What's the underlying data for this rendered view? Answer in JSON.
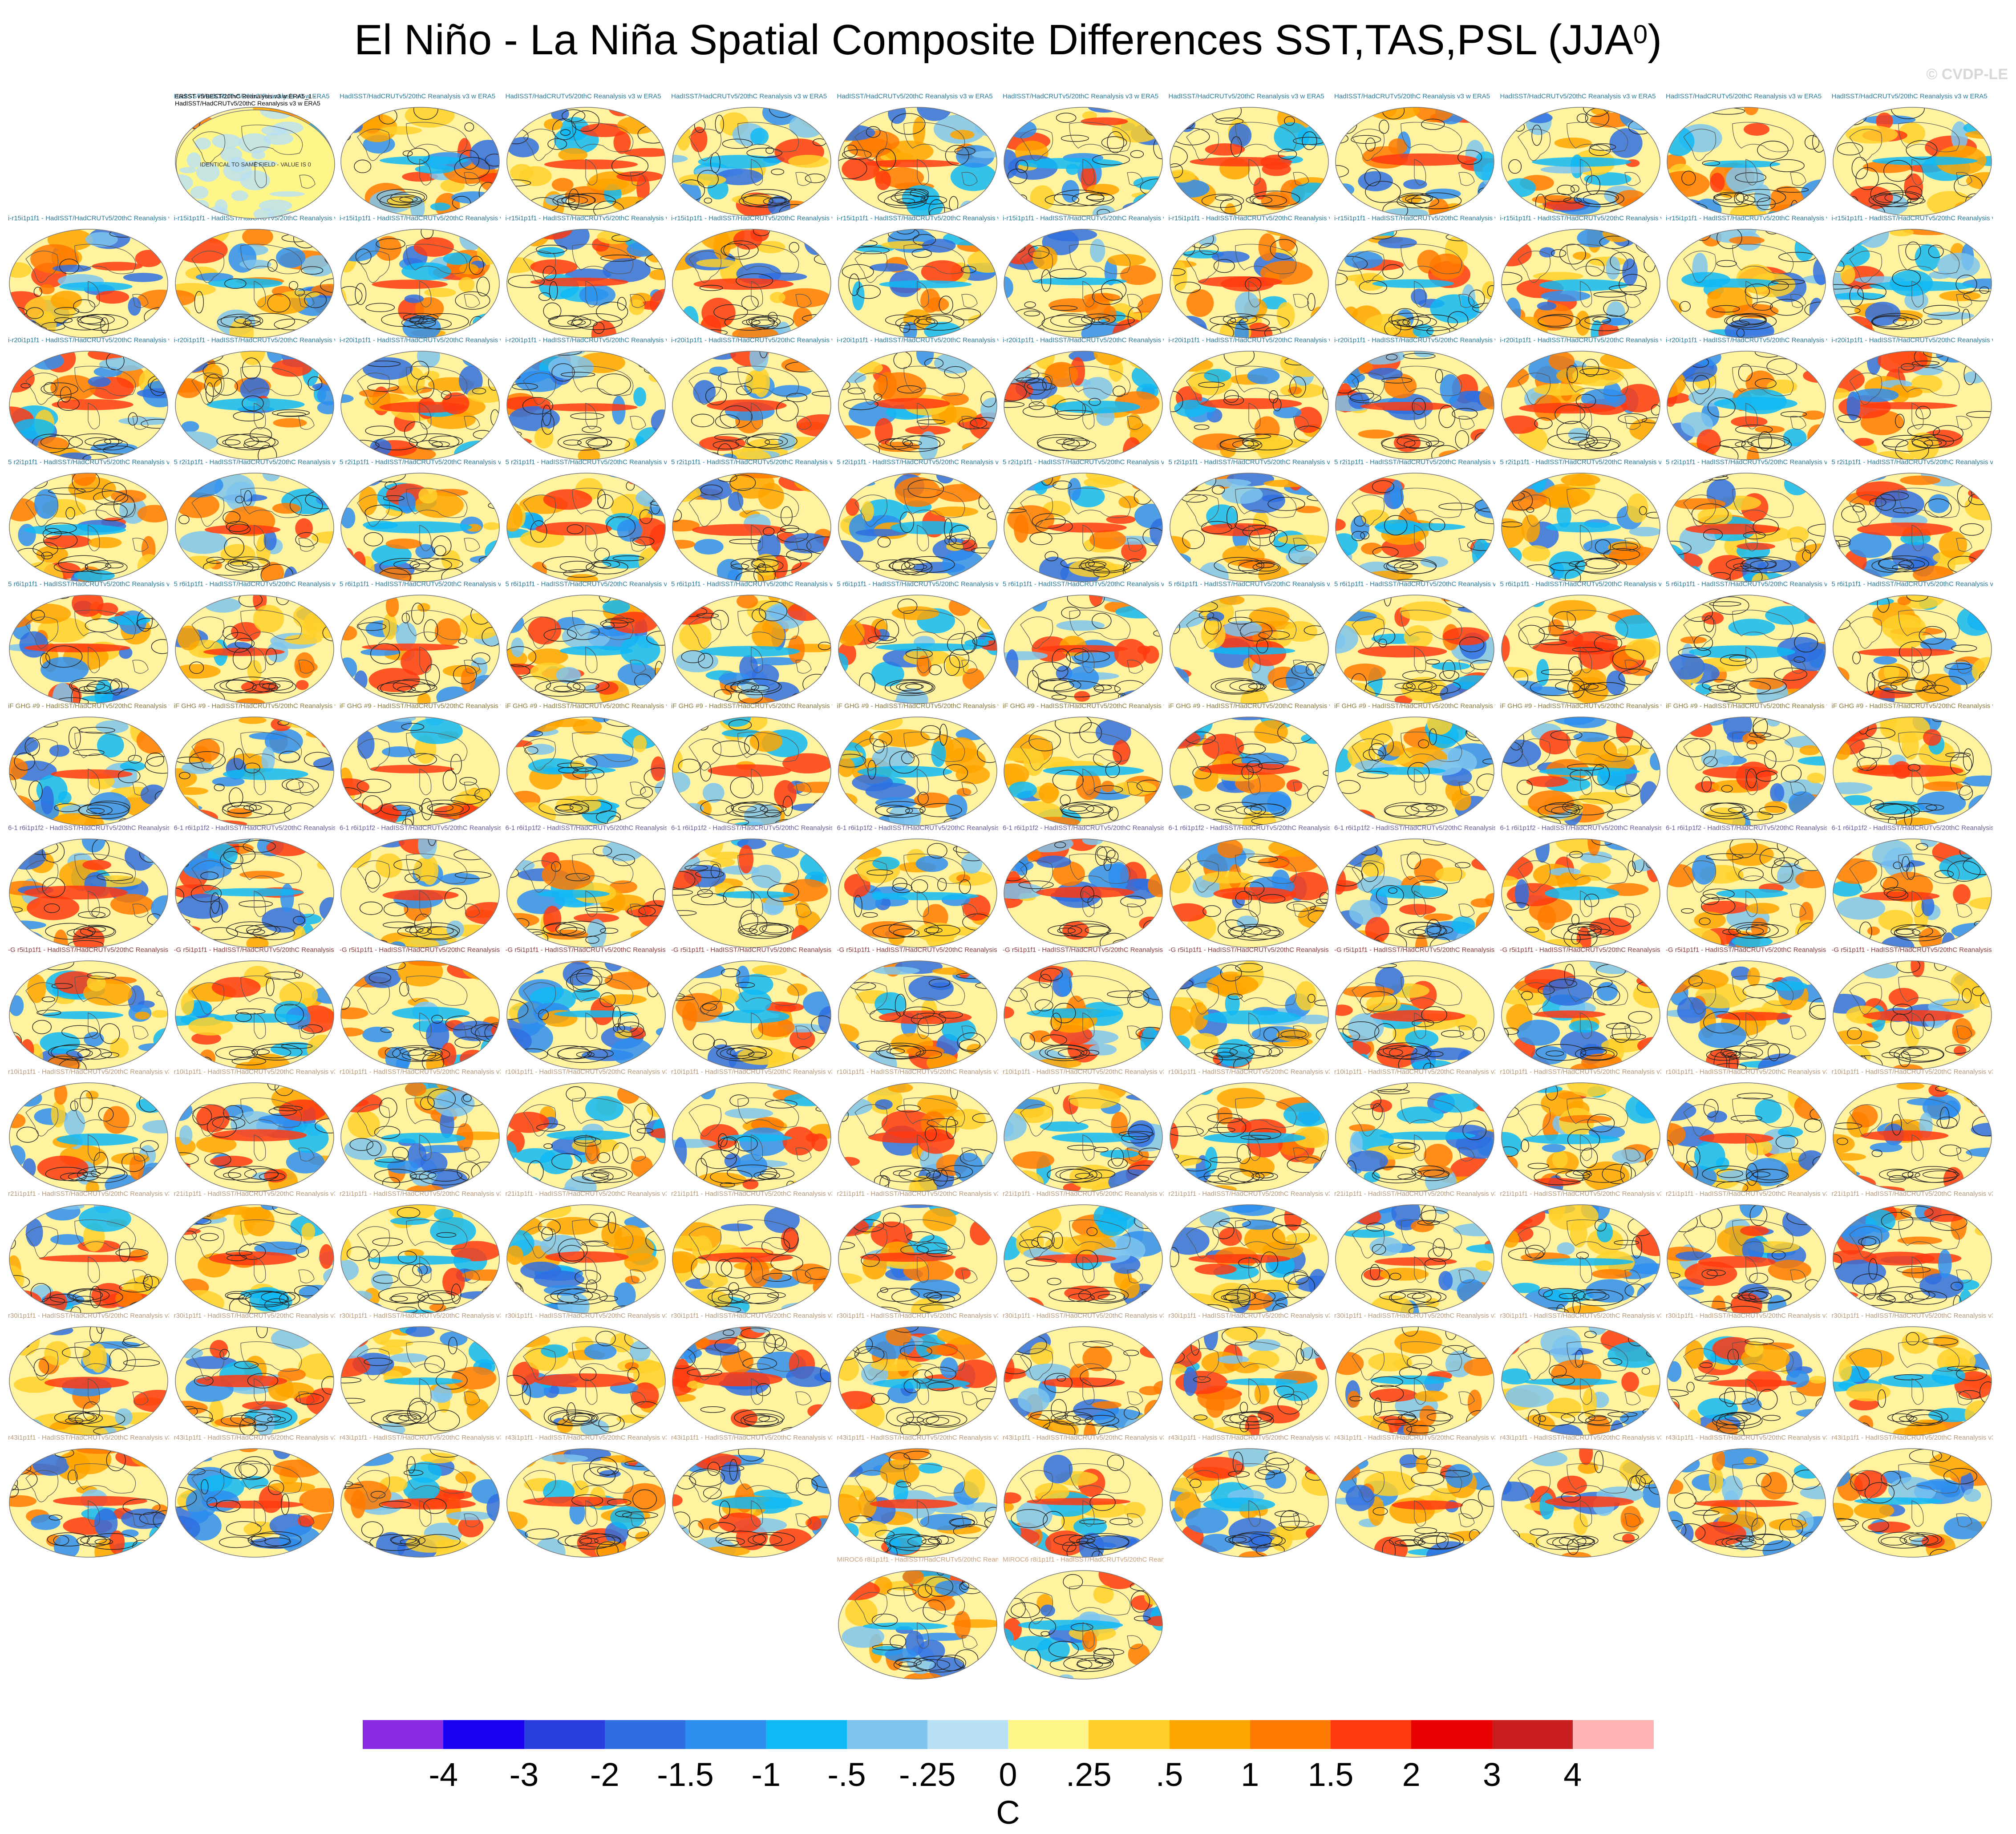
{
  "title": "El Niño - La Niña Spatial Composite Differences SST,TAS,PSL (JJA",
  "title_superscript": "0",
  "title_close": ")",
  "copyright": "© CVDP-LE",
  "observations_panel": {
    "label_line1": "ERSST v5/BEST/20thC Reanalysis v3 w ERA5_1 -",
    "label_line2": "HadISST/HadCRUTv5/20thC Reanalysis v3 w ERA5",
    "inset_text": "IDENTICAL TO SAME FIELD - VALUE IS 0"
  },
  "panel_labels": {
    "row1": "HadISST/HadCRUTv5/20thC Reanalysis v3 w ERA5",
    "row2": "i-r15i1p1f1 - HadISST/HadCRUTv5/20thC Reanalysis v3 w ERA5",
    "row3": "i-r20i1p1f1 - HadISST/HadCRUTv5/20thC Reanalysis v3 w ERA5",
    "row4": "5 r2i1p1f1 - HadISST/HadCRUTv5/20thC Reanalysis v3 w ERA5",
    "row5": "5 r6i1p1f1 - HadISST/HadCRUTv5/20thC Reanalysis v3 w ERA5",
    "row6": "iF GHG #9 - HadISST/HadCRUTv5/20thC Reanalysis v3 w ERA5",
    "row7": "6-1 r6i1p1f2 - HadISST/HadCRUTv5/20thC Reanalysis v3 w ERA5",
    "row8": "-G r5i1p1f1 - HadISST/HadCRUTv5/20thC Reanalysis v3 w ERA5",
    "row9": "r10i1p1f1 - HadISST/HadCRUTv5/20thC Reanalysis v3 w ERA5",
    "row10": "r21i1p1f1 - HadISST/HadCRUTv5/20thC Reanalysis v3 w ERA5",
    "row11": "r30i1p1f1 - HadISST/HadCRUTv5/20thC Reanalysis v3 w ERA5",
    "row12": "r43i1p1f1 - HadISST/HadCRUTv5/20thC Reanalysis v3 w ERA5",
    "row13": "MIROC6 r8i1p1f1 - HadISST/HadCRUTv5/20thC Reanalysis v3 w ERA5"
  },
  "label_colors": [
    "#2a7a9a",
    "#2a7a9a",
    "#2a7a9a",
    "#2a7a9a",
    "#2a7a9a",
    "#8a7a3a",
    "#6a5a9a",
    "#8a3a3a",
    "#b89a7a",
    "#b89a7a",
    "#b89a7a",
    "#b89a7a",
    "#c8a07a"
  ],
  "grid": {
    "rows": 13,
    "cols": 12,
    "row_panel_counts": [
      11,
      12,
      12,
      12,
      12,
      12,
      12,
      12,
      12,
      12,
      12,
      12,
      2
    ]
  },
  "colorbar": {
    "colors": [
      "#8a2be2",
      "#1a00f0",
      "#2a3ee0",
      "#2f6ee0",
      "#2e8ef0",
      "#10b8f5",
      "#7ec4ee",
      "#b8e0f5",
      "#fff68a",
      "#ffd02a",
      "#ffa500",
      "#ff7a00",
      "#ff3a10",
      "#e80000",
      "#c81e1e",
      "#ffb4b4"
    ],
    "tick_labels": [
      "-4",
      "-3",
      "-2",
      "-1.5",
      "-1",
      "-.5",
      "-.25",
      "0",
      ".25",
      ".5",
      "1",
      "1.5",
      "2",
      "3",
      "4"
    ],
    "units": "C"
  }
}
